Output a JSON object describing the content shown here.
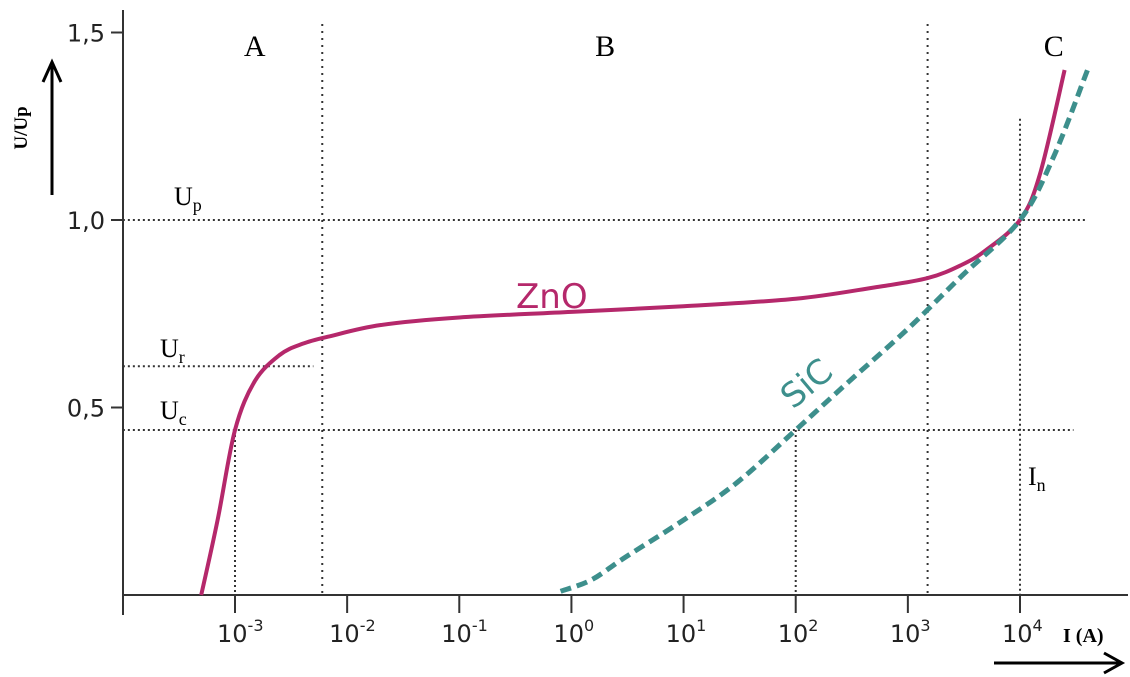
{
  "chart_data": {
    "type": "line",
    "x_scale": "log",
    "xlabel": "I (A)",
    "ylabel": "U/Up",
    "x_ticks": [
      {
        "value": 0.001,
        "base": "10",
        "exp": "-3"
      },
      {
        "value": 0.01,
        "base": "10",
        "exp": "-2"
      },
      {
        "value": 0.1,
        "base": "10",
        "exp": "-1"
      },
      {
        "value": 1,
        "base": "10",
        "exp": "0"
      },
      {
        "value": 10,
        "base": "10",
        "exp": "1"
      },
      {
        "value": 100,
        "base": "10",
        "exp": "2"
      },
      {
        "value": 1000,
        "base": "10",
        "exp": "3"
      },
      {
        "value": 10000,
        "base": "10",
        "exp": "4"
      }
    ],
    "y_ticks": [
      {
        "value": 0.5,
        "label": "0,5"
      },
      {
        "value": 1.0,
        "label": "1,0"
      },
      {
        "value": 1.5,
        "label": "1,5"
      }
    ],
    "regions": [
      {
        "label": "A",
        "x_center": 0.0015
      },
      {
        "label": "B",
        "x_center": 2.0
      },
      {
        "label": "C",
        "x_center": 20000
      }
    ],
    "region_boundaries": [
      0.006,
      1500
    ],
    "reference_lines": [
      {
        "name": "Up",
        "main": "U",
        "sub": "p",
        "y": 1.0,
        "x_from": 0.0001,
        "x_to": 40000
      },
      {
        "name": "Ur",
        "main": "U",
        "sub": "r",
        "y": 0.61,
        "x_from": 0.0001,
        "x_to": 0.005
      },
      {
        "name": "Uc",
        "main": "U",
        "sub": "c",
        "y": 0.44,
        "x_from": 0.0001,
        "x_to": 30000
      }
    ],
    "vertical_markers": [
      {
        "name": "In",
        "main": "I",
        "sub": "n",
        "x": 10000,
        "y_top": 1.27
      },
      {
        "name": "Uc-ZnO",
        "x": 0.001,
        "y_top": 0.44
      },
      {
        "name": "Uc-SiC",
        "x": 100,
        "y_top": 0.44
      }
    ],
    "series": [
      {
        "name": "ZnO",
        "color": "#b5286b",
        "style": "solid",
        "x": [
          0.0005,
          0.0007,
          0.001,
          0.0015,
          0.0025,
          0.004,
          0.007,
          0.02,
          0.1,
          1,
          10,
          100,
          500,
          1500,
          3000,
          5000,
          10000,
          15000,
          25000
        ],
        "y": [
          0.0,
          0.2,
          0.44,
          0.57,
          0.64,
          0.67,
          0.69,
          0.72,
          0.74,
          0.755,
          0.77,
          0.79,
          0.82,
          0.845,
          0.88,
          0.92,
          1.0,
          1.12,
          1.4
        ]
      },
      {
        "name": "SiC",
        "color": "#3d8f8c",
        "style": "dashed",
        "x": [
          0.8,
          1.5,
          3,
          10,
          30,
          100,
          300,
          1000,
          3000,
          10000,
          20000,
          40000
        ],
        "y": [
          0.01,
          0.04,
          0.1,
          0.2,
          0.3,
          0.44,
          0.57,
          0.71,
          0.85,
          1.0,
          1.17,
          1.4
        ]
      }
    ]
  }
}
